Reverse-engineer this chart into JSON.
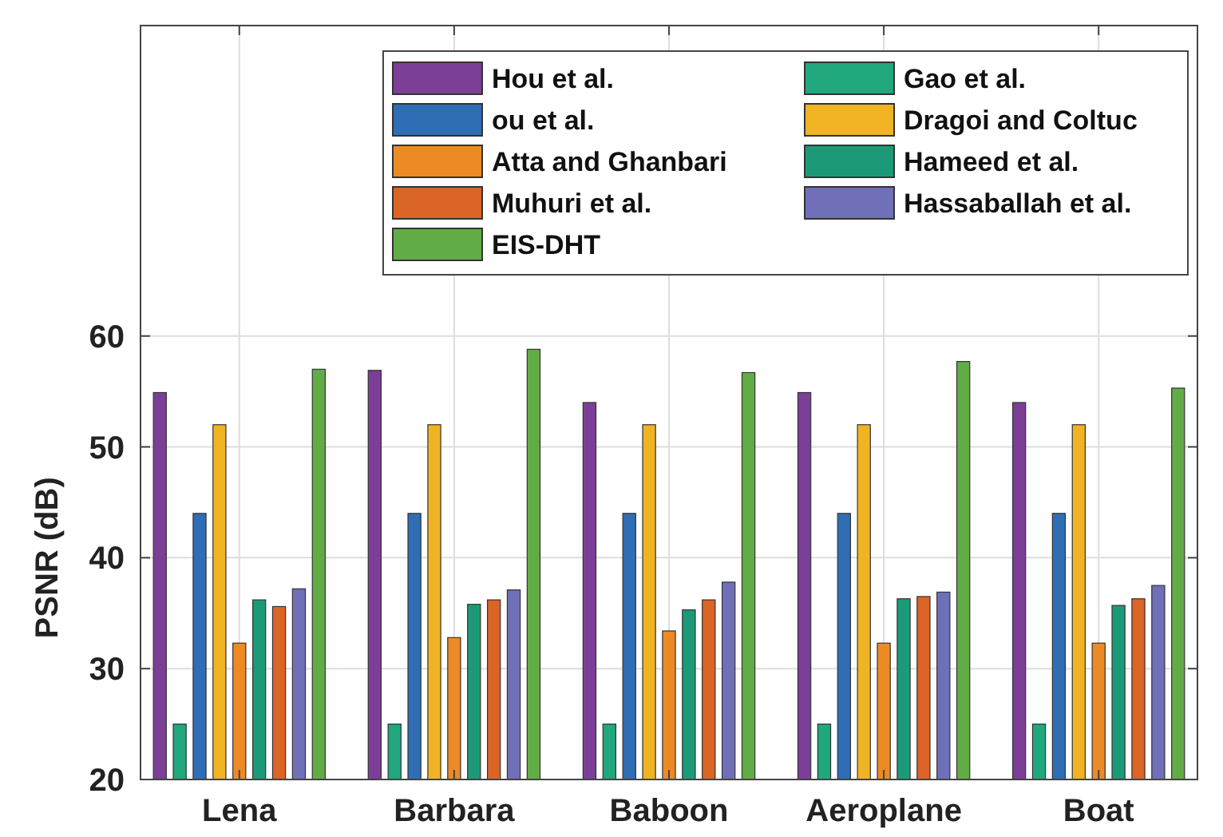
{
  "chart_data": {
    "type": "bar",
    "ylabel": "PSNR (dB)",
    "categories": [
      "Lena",
      "Barbara",
      "Baboon",
      "Aeroplane",
      "Boat"
    ],
    "series": [
      {
        "name": "Hou et al.",
        "color": "#7b3f98",
        "values": [
          54.9,
          56.9,
          54.0,
          54.9,
          54.0
        ]
      },
      {
        "name": "Gao et al.",
        "color": "#20a77e",
        "values": [
          25,
          25,
          25,
          25,
          25
        ]
      },
      {
        "name": "ou et al.",
        "color": "#2f6db5",
        "values": [
          44,
          44,
          44,
          44,
          44
        ]
      },
      {
        "name": "Dragoi and Coltuc",
        "color": "#f0b323",
        "values": [
          52,
          52,
          52,
          52,
          52
        ]
      },
      {
        "name": "Atta and Ghanbari",
        "color": "#ec8a25",
        "values": [
          32.3,
          32.8,
          33.4,
          32.3,
          32.3
        ]
      },
      {
        "name": "Hameed et al.",
        "color": "#1c9a78",
        "values": [
          36.2,
          35.8,
          35.3,
          36.3,
          35.7
        ]
      },
      {
        "name": "Muhuri et al.",
        "color": "#db6427",
        "values": [
          35.6,
          36.2,
          36.2,
          36.5,
          36.3
        ]
      },
      {
        "name": "Hassaballah et al.",
        "color": "#6f70b8",
        "values": [
          37.2,
          37.1,
          37.8,
          36.9,
          37.5
        ]
      },
      {
        "name": "EIS-DHT",
        "color": "#62ac45",
        "values": [
          57.0,
          58.8,
          56.7,
          57.7,
          55.3
        ]
      }
    ],
    "ylim": [
      20,
      88
    ],
    "yticks": [
      20,
      30,
      40,
      50,
      60
    ],
    "grid": true,
    "legend": "top right"
  }
}
